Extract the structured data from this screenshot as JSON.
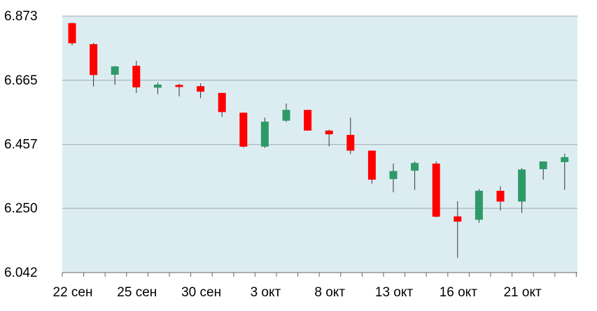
{
  "chart_data": {
    "type": "candlestick",
    "title": "",
    "xlabel": "",
    "ylabel": "",
    "ylim": [
      6.042,
      6.873
    ],
    "y_ticks": [
      "6.873",
      "6.665",
      "6.457",
      "6.250",
      "6.042"
    ],
    "y_tick_values": [
      6.873,
      6.665,
      6.457,
      6.25,
      6.042
    ],
    "x_ticks": [
      "22 сен",
      "25 сен",
      "30 сен",
      "3 окт",
      "8 окт",
      "13 окт",
      "16 окт",
      "21 окт"
    ],
    "x_tick_index": [
      0,
      3,
      6,
      9,
      12,
      15,
      18,
      21
    ],
    "grid": true,
    "legend": "none",
    "colors": {
      "up": "#2e9a68",
      "down": "#ff0000",
      "background": "#dcedf2",
      "grid": "#9aa8ae",
      "wick": "#333333",
      "axis": "#666666"
    },
    "candles": [
      {
        "open": 6.85,
        "high": 6.852,
        "low": 6.778,
        "close": 6.785
      },
      {
        "open": 6.782,
        "high": 6.786,
        "low": 6.645,
        "close": 6.682
      },
      {
        "open": 6.683,
        "high": 6.711,
        "low": 6.65,
        "close": 6.71
      },
      {
        "open": 6.712,
        "high": 6.728,
        "low": 6.624,
        "close": 6.642
      },
      {
        "open": 6.641,
        "high": 6.658,
        "low": 6.62,
        "close": 6.651
      },
      {
        "open": 6.65,
        "high": 6.654,
        "low": 6.613,
        "close": 6.646
      },
      {
        "open": 6.646,
        "high": 6.655,
        "low": 6.607,
        "close": 6.628
      },
      {
        "open": 6.624,
        "high": 6.624,
        "low": 6.546,
        "close": 6.562
      },
      {
        "open": 6.56,
        "high": 6.56,
        "low": 6.447,
        "close": 6.45
      },
      {
        "open": 6.45,
        "high": 6.544,
        "low": 6.446,
        "close": 6.531
      },
      {
        "open": 6.534,
        "high": 6.59,
        "low": 6.53,
        "close": 6.569
      },
      {
        "open": 6.569,
        "high": 6.569,
        "low": 6.502,
        "close": 6.502
      },
      {
        "open": 6.502,
        "high": 6.505,
        "low": 6.451,
        "close": 6.49
      },
      {
        "open": 6.488,
        "high": 6.544,
        "low": 6.426,
        "close": 6.437
      },
      {
        "open": 6.437,
        "high": 6.437,
        "low": 6.33,
        "close": 6.343
      },
      {
        "open": 6.345,
        "high": 6.395,
        "low": 6.302,
        "close": 6.371
      },
      {
        "open": 6.372,
        "high": 6.402,
        "low": 6.31,
        "close": 6.397
      },
      {
        "open": 6.395,
        "high": 6.402,
        "low": 6.221,
        "close": 6.223
      },
      {
        "open": 6.224,
        "high": 6.273,
        "low": 6.09,
        "close": 6.207
      },
      {
        "open": 6.213,
        "high": 6.313,
        "low": 6.203,
        "close": 6.307
      },
      {
        "open": 6.307,
        "high": 6.322,
        "low": 6.243,
        "close": 6.272
      },
      {
        "open": 6.272,
        "high": 6.381,
        "low": 6.235,
        "close": 6.376
      },
      {
        "open": 6.377,
        "high": 6.402,
        "low": 6.343,
        "close": 6.402
      },
      {
        "open": 6.4,
        "high": 6.427,
        "low": 6.31,
        "close": 6.416
      }
    ]
  }
}
